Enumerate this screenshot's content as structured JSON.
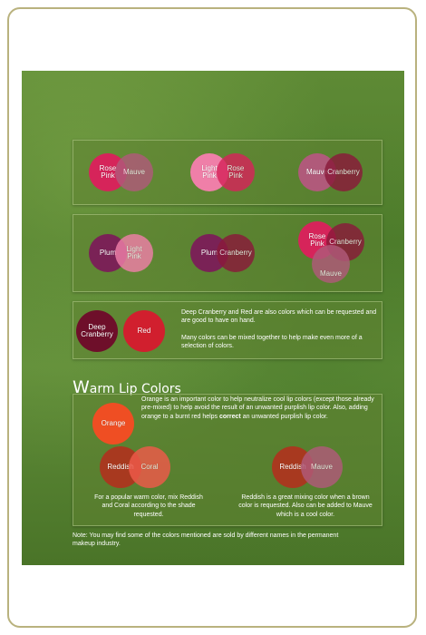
{
  "cool_row1": {
    "pair1": {
      "left": "Rose\nPink",
      "right": "Mauve"
    },
    "pair2": {
      "left": "Light\nPink",
      "right": "Rose\nPink"
    },
    "pair3": {
      "left": "Mauve",
      "right": "Cranberry"
    }
  },
  "cool_row2": {
    "pair1": {
      "left": "Plum",
      "right": "Light\nPink"
    },
    "pair2": {
      "left": "Plum",
      "right": "Cranberry"
    },
    "triple": {
      "top_left": "Rose\nPink",
      "right": "Cranberry",
      "bottom": "Mauve"
    }
  },
  "cool_row3": {
    "circle1": "Deep\nCranberry",
    "circle2": "Red",
    "text1": "Deep Cranberry and Red are also colors which can be requested and are good to have on hand.",
    "text2": "Many colors can be mixed together to help make even more of a selection of colors."
  },
  "warm": {
    "title_first": "W",
    "title_rest": "arm Lip Colors",
    "orange_label": "Orange",
    "orange_text_before": "Orange is an important color to help neutralize cool lip colors (except those already pre-mixed) to help avoid the result of an unwanted purplish lip color. Also, adding orange to a burnt red helps ",
    "orange_text_bold": "correct",
    "orange_text_after": " an unwanted purplish lip color.",
    "pair1": {
      "left": "Reddish",
      "right": "Coral"
    },
    "pair1_text": "For a popular warm color, mix Reddish and Coral according to the shade requested.",
    "pair2": {
      "left": "Reddish",
      "right": "Mauve"
    },
    "pair2_text": "Reddish is a great mixing color when a brown color is requested. Also can be added to Mauve which is a cool color."
  },
  "note": "Note: You may find some of the colors mentioned are sold by different names in the permanent makeup industry.",
  "colors": {
    "rose_pink": "#d6245a",
    "mauve": "#b05a7a",
    "light_pink": "#ef7fa8",
    "cranberry": "#8a1a3a",
    "plum": "#7a2256",
    "deep_cranberry": "#6e0f2a",
    "red": "#d11f2e",
    "orange": "#ef4e23",
    "reddish": "#a8391f",
    "coral": "#ef5a4a"
  }
}
